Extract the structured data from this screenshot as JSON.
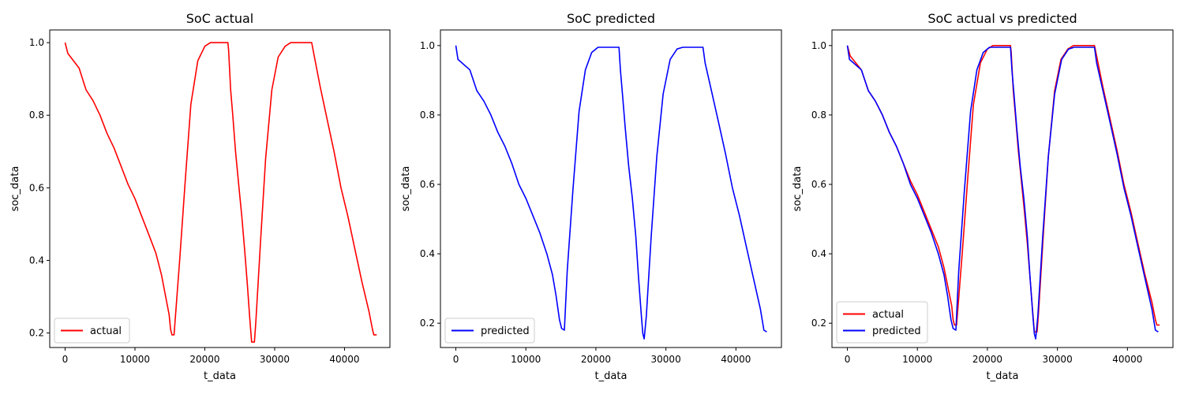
{
  "chart_data": [
    {
      "type": "line",
      "title": "SoC actual",
      "xlabel": "t_data",
      "ylabel": "soc_data",
      "xlim": [
        -2200,
        46500
      ],
      "ylim": [
        0.16,
        1.035
      ],
      "xticks": [
        0,
        10000,
        20000,
        30000,
        40000
      ],
      "yticks": [
        0.2,
        0.4,
        0.6,
        0.8,
        1.0
      ],
      "legend": "lower-left",
      "series": [
        {
          "name": "actual",
          "color": "#ff0000",
          "points": [
            [
              0,
              1.0
            ],
            [
              400,
              0.97
            ],
            [
              2000,
              0.93
            ],
            [
              3000,
              0.87
            ],
            [
              4000,
              0.84
            ],
            [
              5000,
              0.8
            ],
            [
              6000,
              0.75
            ],
            [
              7000,
              0.71
            ],
            [
              8000,
              0.66
            ],
            [
              9000,
              0.61
            ],
            [
              10000,
              0.57
            ],
            [
              11000,
              0.52
            ],
            [
              12000,
              0.47
            ],
            [
              13000,
              0.42
            ],
            [
              13800,
              0.36
            ],
            [
              14300,
              0.31
            ],
            [
              14900,
              0.25
            ],
            [
              15100,
              0.21
            ],
            [
              15300,
              0.195
            ],
            [
              15600,
              0.195
            ],
            [
              16400,
              0.4
            ],
            [
              17200,
              0.62
            ],
            [
              18000,
              0.83
            ],
            [
              19000,
              0.95
            ],
            [
              20000,
              0.99
            ],
            [
              20800,
              1.0
            ],
            [
              23300,
              1.0
            ],
            [
              23400,
              0.98
            ],
            [
              23700,
              0.87
            ],
            [
              24000,
              0.8
            ],
            [
              24400,
              0.7
            ],
            [
              24900,
              0.6
            ],
            [
              25300,
              0.52
            ],
            [
              25700,
              0.43
            ],
            [
              26100,
              0.33
            ],
            [
              26400,
              0.25
            ],
            [
              26600,
              0.2
            ],
            [
              26700,
              0.175
            ],
            [
              27100,
              0.175
            ],
            [
              27300,
              0.23
            ],
            [
              28000,
              0.46
            ],
            [
              28700,
              0.68
            ],
            [
              29600,
              0.87
            ],
            [
              30500,
              0.96
            ],
            [
              31500,
              0.99
            ],
            [
              32300,
              1.0
            ],
            [
              35300,
              1.0
            ],
            [
              35600,
              0.97
            ],
            [
              36500,
              0.88
            ],
            [
              37500,
              0.79
            ],
            [
              38500,
              0.7
            ],
            [
              39500,
              0.6
            ],
            [
              40500,
              0.52
            ],
            [
              41500,
              0.43
            ],
            [
              42500,
              0.34
            ],
            [
              43500,
              0.26
            ],
            [
              44000,
              0.21
            ],
            [
              44200,
              0.195
            ],
            [
              44600,
              0.195
            ]
          ]
        }
      ]
    },
    {
      "type": "line",
      "title": "SoC predicted",
      "xlabel": "t_data",
      "ylabel": "soc_data",
      "xlim": [
        -2200,
        46500
      ],
      "ylim": [
        0.13,
        1.045
      ],
      "xticks": [
        0,
        10000,
        20000,
        30000,
        40000
      ],
      "yticks": [
        0.2,
        0.4,
        0.6,
        0.8,
        1.0
      ],
      "legend": "lower-left",
      "series": [
        {
          "name": "predicted",
          "color": "#0000ff",
          "points": [
            [
              0,
              1.0
            ],
            [
              300,
              0.96
            ],
            [
              2000,
              0.93
            ],
            [
              3000,
              0.87
            ],
            [
              4000,
              0.84
            ],
            [
              5000,
              0.8
            ],
            [
              6000,
              0.75
            ],
            [
              7000,
              0.71
            ],
            [
              8000,
              0.66
            ],
            [
              9000,
              0.6
            ],
            [
              10000,
              0.56
            ],
            [
              11000,
              0.51
            ],
            [
              12000,
              0.46
            ],
            [
              13000,
              0.4
            ],
            [
              13800,
              0.34
            ],
            [
              14300,
              0.28
            ],
            [
              14800,
              0.21
            ],
            [
              15100,
              0.185
            ],
            [
              15500,
              0.18
            ],
            [
              15900,
              0.35
            ],
            [
              16700,
              0.58
            ],
            [
              17600,
              0.81
            ],
            [
              18500,
              0.93
            ],
            [
              19400,
              0.98
            ],
            [
              20300,
              0.995
            ],
            [
              23300,
              0.995
            ],
            [
              23500,
              0.93
            ],
            [
              23800,
              0.86
            ],
            [
              24200,
              0.76
            ],
            [
              24700,
              0.65
            ],
            [
              25200,
              0.56
            ],
            [
              25700,
              0.45
            ],
            [
              26100,
              0.33
            ],
            [
              26500,
              0.22
            ],
            [
              26700,
              0.17
            ],
            [
              26900,
              0.155
            ],
            [
              27200,
              0.22
            ],
            [
              27900,
              0.45
            ],
            [
              28700,
              0.68
            ],
            [
              29600,
              0.86
            ],
            [
              30600,
              0.96
            ],
            [
              31600,
              0.99
            ],
            [
              32400,
              0.995
            ],
            [
              35300,
              0.995
            ],
            [
              35600,
              0.95
            ],
            [
              36500,
              0.87
            ],
            [
              37500,
              0.78
            ],
            [
              38500,
              0.69
            ],
            [
              39500,
              0.59
            ],
            [
              40500,
              0.51
            ],
            [
              41500,
              0.42
            ],
            [
              42500,
              0.33
            ],
            [
              43500,
              0.24
            ],
            [
              44000,
              0.18
            ],
            [
              44400,
              0.175
            ]
          ]
        }
      ]
    },
    {
      "type": "line",
      "title": "SoC actual vs predicted",
      "xlabel": "t_data",
      "ylabel": "soc_data",
      "xlim": [
        -2200,
        46500
      ],
      "ylim": [
        0.13,
        1.045
      ],
      "xticks": [
        0,
        10000,
        20000,
        30000,
        40000
      ],
      "yticks": [
        0.2,
        0.4,
        0.6,
        0.8,
        1.0
      ],
      "legend": "lower-left",
      "series": [
        {
          "name": "actual",
          "color": "#ff0000",
          "points": [
            [
              0,
              1.0
            ],
            [
              400,
              0.97
            ],
            [
              2000,
              0.93
            ],
            [
              3000,
              0.87
            ],
            [
              4000,
              0.84
            ],
            [
              5000,
              0.8
            ],
            [
              6000,
              0.75
            ],
            [
              7000,
              0.71
            ],
            [
              8000,
              0.66
            ],
            [
              9000,
              0.61
            ],
            [
              10000,
              0.57
            ],
            [
              11000,
              0.52
            ],
            [
              12000,
              0.47
            ],
            [
              13000,
              0.42
            ],
            [
              13800,
              0.36
            ],
            [
              14300,
              0.31
            ],
            [
              14900,
              0.25
            ],
            [
              15100,
              0.21
            ],
            [
              15300,
              0.195
            ],
            [
              15600,
              0.195
            ],
            [
              16400,
              0.4
            ],
            [
              17200,
              0.62
            ],
            [
              18000,
              0.83
            ],
            [
              19000,
              0.95
            ],
            [
              20000,
              0.99
            ],
            [
              20800,
              1.0
            ],
            [
              23300,
              1.0
            ],
            [
              23400,
              0.98
            ],
            [
              23700,
              0.87
            ],
            [
              24000,
              0.8
            ],
            [
              24400,
              0.7
            ],
            [
              24900,
              0.6
            ],
            [
              25300,
              0.52
            ],
            [
              25700,
              0.43
            ],
            [
              26100,
              0.33
            ],
            [
              26400,
              0.25
            ],
            [
              26600,
              0.2
            ],
            [
              26700,
              0.175
            ],
            [
              27100,
              0.175
            ],
            [
              27300,
              0.23
            ],
            [
              28000,
              0.46
            ],
            [
              28700,
              0.68
            ],
            [
              29600,
              0.87
            ],
            [
              30500,
              0.96
            ],
            [
              31500,
              0.99
            ],
            [
              32300,
              1.0
            ],
            [
              35300,
              1.0
            ],
            [
              35600,
              0.97
            ],
            [
              36500,
              0.88
            ],
            [
              37500,
              0.79
            ],
            [
              38500,
              0.7
            ],
            [
              39500,
              0.6
            ],
            [
              40500,
              0.52
            ],
            [
              41500,
              0.43
            ],
            [
              42500,
              0.34
            ],
            [
              43500,
              0.26
            ],
            [
              44000,
              0.21
            ],
            [
              44200,
              0.195
            ],
            [
              44600,
              0.195
            ]
          ]
        },
        {
          "name": "predicted",
          "color": "#0000ff",
          "points": [
            [
              0,
              1.0
            ],
            [
              300,
              0.96
            ],
            [
              2000,
              0.93
            ],
            [
              3000,
              0.87
            ],
            [
              4000,
              0.84
            ],
            [
              5000,
              0.8
            ],
            [
              6000,
              0.75
            ],
            [
              7000,
              0.71
            ],
            [
              8000,
              0.66
            ],
            [
              9000,
              0.6
            ],
            [
              10000,
              0.56
            ],
            [
              11000,
              0.51
            ],
            [
              12000,
              0.46
            ],
            [
              13000,
              0.4
            ],
            [
              13800,
              0.34
            ],
            [
              14300,
              0.28
            ],
            [
              14800,
              0.21
            ],
            [
              15100,
              0.185
            ],
            [
              15500,
              0.18
            ],
            [
              15900,
              0.35
            ],
            [
              16700,
              0.58
            ],
            [
              17600,
              0.81
            ],
            [
              18500,
              0.93
            ],
            [
              19400,
              0.98
            ],
            [
              20300,
              0.995
            ],
            [
              23300,
              0.995
            ],
            [
              23500,
              0.93
            ],
            [
              23800,
              0.86
            ],
            [
              24200,
              0.76
            ],
            [
              24700,
              0.65
            ],
            [
              25200,
              0.56
            ],
            [
              25700,
              0.45
            ],
            [
              26100,
              0.33
            ],
            [
              26500,
              0.22
            ],
            [
              26700,
              0.17
            ],
            [
              26900,
              0.155
            ],
            [
              27200,
              0.22
            ],
            [
              27900,
              0.45
            ],
            [
              28700,
              0.68
            ],
            [
              29600,
              0.86
            ],
            [
              30600,
              0.96
            ],
            [
              31600,
              0.99
            ],
            [
              32400,
              0.995
            ],
            [
              35300,
              0.995
            ],
            [
              35600,
              0.95
            ],
            [
              36500,
              0.87
            ],
            [
              37500,
              0.78
            ],
            [
              38500,
              0.69
            ],
            [
              39500,
              0.59
            ],
            [
              40500,
              0.51
            ],
            [
              41500,
              0.42
            ],
            [
              42500,
              0.33
            ],
            [
              43500,
              0.24
            ],
            [
              44000,
              0.18
            ],
            [
              44400,
              0.175
            ]
          ]
        }
      ]
    }
  ]
}
